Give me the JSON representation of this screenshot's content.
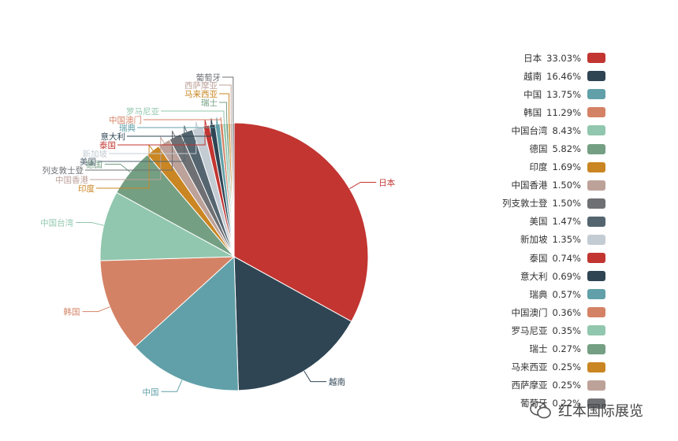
{
  "chart_data": {
    "type": "pie",
    "slices": [
      {
        "label": "日本",
        "percent_text": "33.03%",
        "value": 33.03,
        "color": "#c23531"
      },
      {
        "label": "越南",
        "percent_text": "16.46%",
        "value": 16.46,
        "color": "#2f4554"
      },
      {
        "label": "中国",
        "percent_text": "13.75%",
        "value": 13.75,
        "color": "#61a0a8"
      },
      {
        "label": "韩国",
        "percent_text": "11.29%",
        "value": 11.29,
        "color": "#d48265"
      },
      {
        "label": "中国台湾",
        "percent_text": "8.43%",
        "value": 8.43,
        "color": "#91c7ae"
      },
      {
        "label": "德国",
        "percent_text": "5.82%",
        "value": 5.82,
        "color": "#749f83"
      },
      {
        "label": "印度",
        "percent_text": "1.69%",
        "value": 1.69,
        "color": "#ca8622"
      },
      {
        "label": "中国香港",
        "percent_text": "1.50%",
        "value": 1.5,
        "color": "#bda29a"
      },
      {
        "label": "列支敦士登",
        "percent_text": "1.50%",
        "value": 1.5,
        "color": "#6e7074"
      },
      {
        "label": "美国",
        "percent_text": "1.47%",
        "value": 1.47,
        "color": "#546570"
      },
      {
        "label": "新加坡",
        "percent_text": "1.35%",
        "value": 1.35,
        "color": "#c4ccd3"
      },
      {
        "label": "泰国",
        "percent_text": "0.74%",
        "value": 0.74,
        "color": "#c23531"
      },
      {
        "label": "意大利",
        "percent_text": "0.69%",
        "value": 0.69,
        "color": "#2f4554"
      },
      {
        "label": "瑞典",
        "percent_text": "0.57%",
        "value": 0.57,
        "color": "#61a0a8"
      },
      {
        "label": "中国澳门",
        "percent_text": "0.36%",
        "value": 0.36,
        "color": "#d48265"
      },
      {
        "label": "罗马尼亚",
        "percent_text": "0.35%",
        "value": 0.35,
        "color": "#91c7ae"
      },
      {
        "label": "瑞士",
        "percent_text": "0.27%",
        "value": 0.27,
        "color": "#749f83"
      },
      {
        "label": "马来西亚",
        "percent_text": "0.25%",
        "value": 0.25,
        "color": "#ca8622"
      },
      {
        "label": "西萨摩亚",
        "percent_text": "0.25%",
        "value": 0.25,
        "color": "#bda29a"
      },
      {
        "label": "葡萄牙",
        "percent_text": "0.22%",
        "value": 0.22,
        "color": "#6e7074"
      }
    ],
    "legend_position": "right",
    "start": "top",
    "direction": "clockwise"
  },
  "watermark": {
    "text": "红本国际展览",
    "icon": "wechat-icon"
  }
}
